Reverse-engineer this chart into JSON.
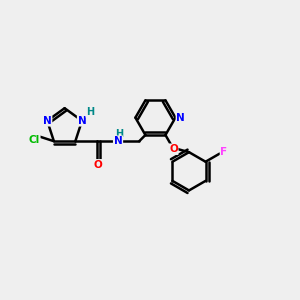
{
  "background_color": "#efefef",
  "bond_color": "#000000",
  "atom_colors": {
    "N": "#0000ff",
    "O": "#ff0000",
    "Cl": "#00bb00",
    "F": "#ff44ff",
    "H": "#008888",
    "C": "#000000"
  },
  "figsize": [
    3.0,
    3.0
  ],
  "dpi": 100
}
